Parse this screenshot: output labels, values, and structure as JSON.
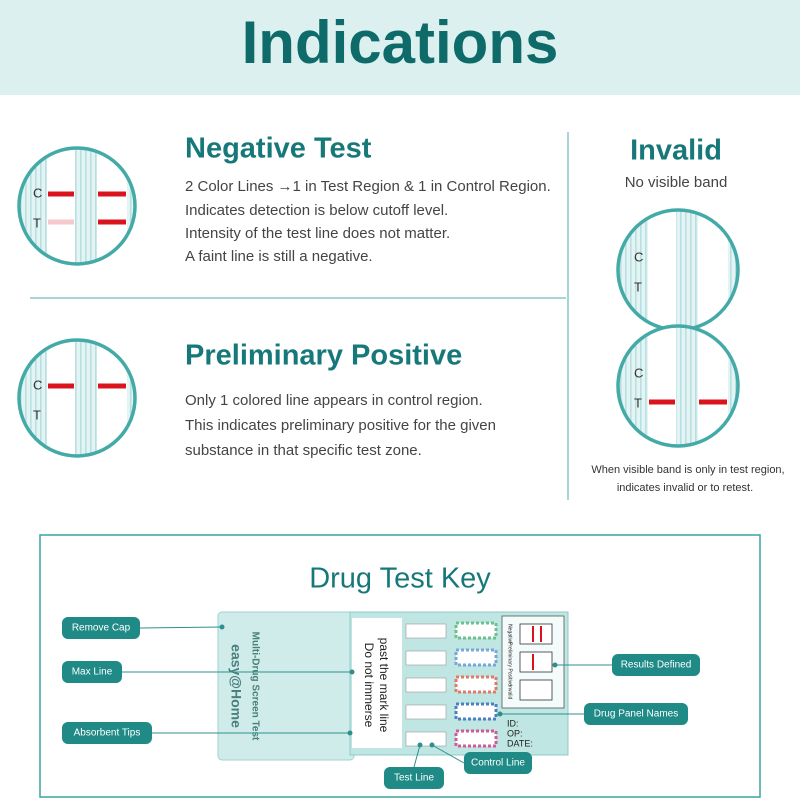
{
  "header": {
    "title": "Indications"
  },
  "strip_labels": {
    "control": "C",
    "test": "T"
  },
  "negative": {
    "title": "Negative Test",
    "lines": [
      "2 Color Lines →1 in Test Region & 1 in Control Region.",
      "Indicates detection is below cutoff level.",
      "Intensity of the test line does not matter.",
      "A faint line is still a negative."
    ]
  },
  "positive": {
    "title": "Preliminary Positive",
    "lines": [
      "Only 1 colored line appears in control region.",
      "This indicates preliminary positive for the given",
      "substance in that specific test zone."
    ]
  },
  "invalid": {
    "title": "Invalid",
    "subtitle": "No visible band",
    "note": [
      "When visible band is only in test region,",
      "indicates invalid or to retest."
    ]
  },
  "key": {
    "title": "Drug Test Key",
    "device": {
      "brand": "easy@Home",
      "product": "Multi-Drug Screen Test",
      "warning": [
        "Do not immerse",
        "past the mark line"
      ],
      "fields": [
        "ID:",
        "OP:",
        "DATE:"
      ],
      "results": [
        "Negative",
        "Preliminary Positive",
        "Invalid"
      ]
    },
    "callouts": [
      "Remove Cap",
      "Max Line",
      "Absorbent Tips",
      "Results Defined",
      "Drug Panel Names",
      "Test Line",
      "Control Line"
    ]
  }
}
